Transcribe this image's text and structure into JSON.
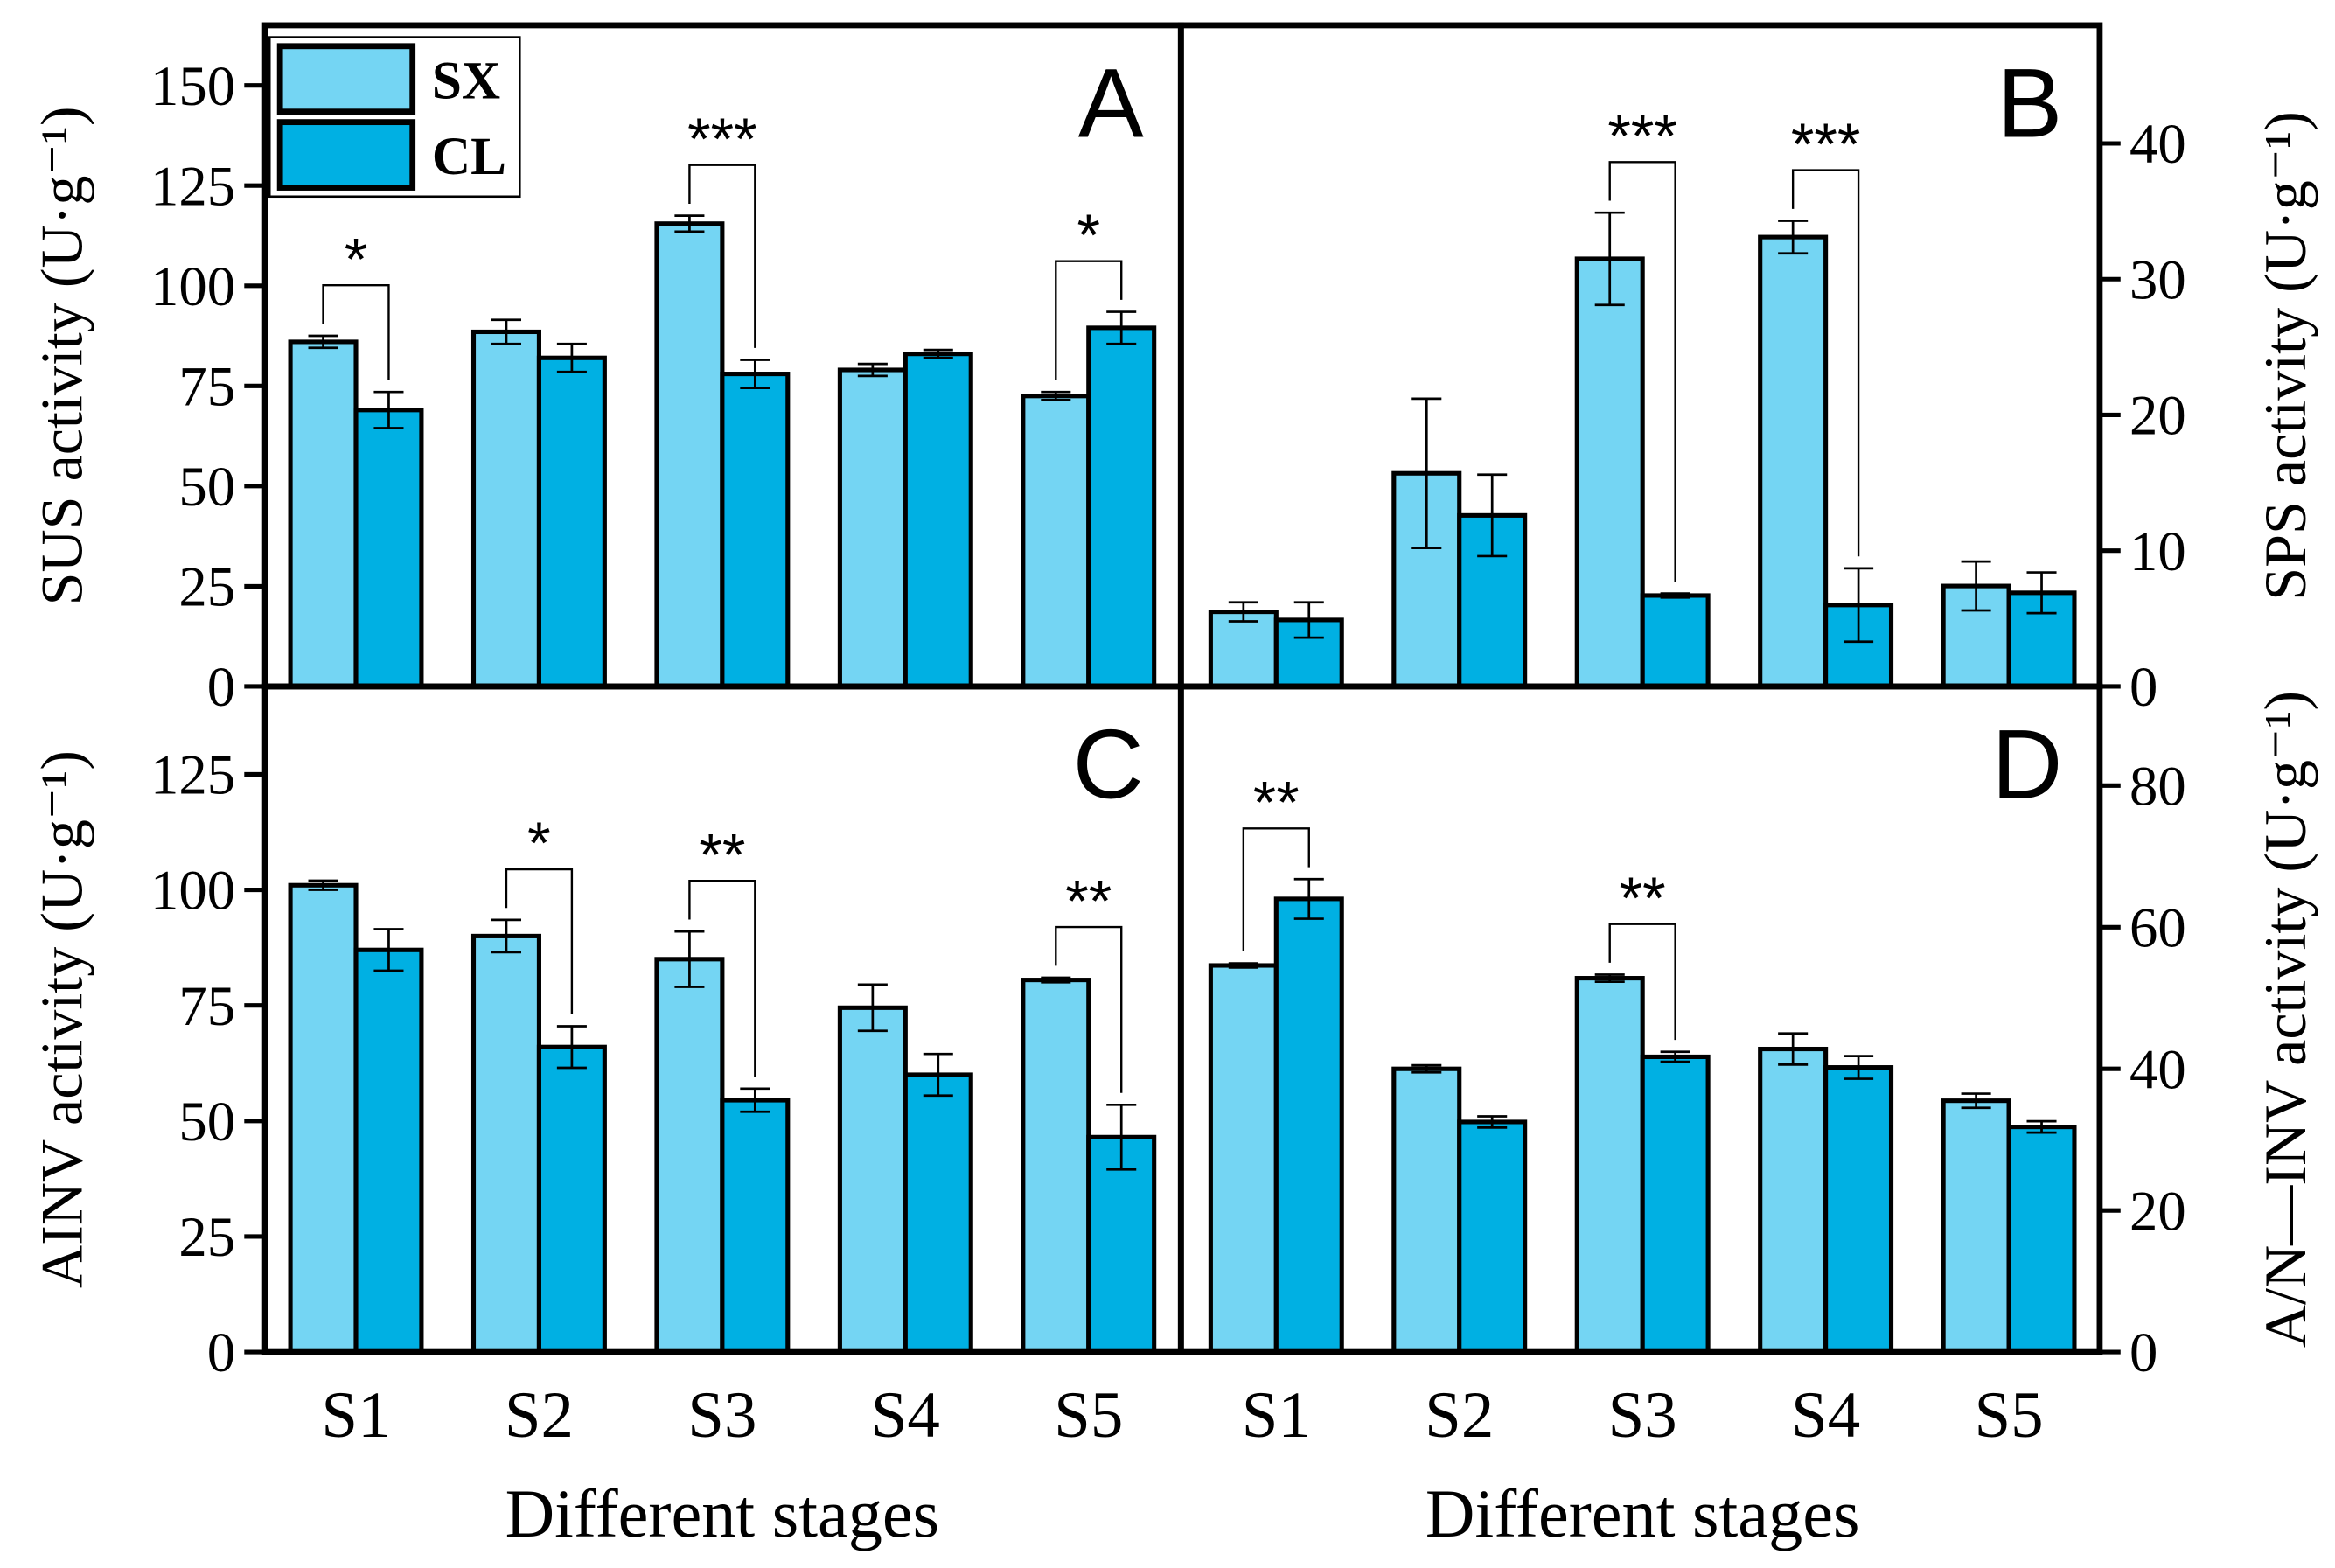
{
  "colors": {
    "SX": "#74D5F3",
    "CL": "#00B0E3"
  },
  "legend": {
    "placement": "top-left",
    "entries": [
      "SX",
      "CL"
    ]
  },
  "xlabel": "Different stages",
  "chart_data": [
    {
      "type": "bar",
      "panel": "A",
      "ylabel": "SUS activity (U·g⁻¹)",
      "axis_side": "left",
      "categories": [
        "S1",
        "S2",
        "S3",
        "S4",
        "S5"
      ],
      "ylim": [
        0,
        165
      ],
      "yticks": [
        0,
        25,
        50,
        75,
        100,
        125,
        150
      ],
      "series": [
        {
          "name": "SX",
          "values": [
            86,
            88.5,
            115.5,
            79,
            72.5
          ],
          "errors": [
            1.5,
            3,
            2,
            1.5,
            1
          ]
        },
        {
          "name": "CL",
          "values": [
            69,
            82,
            78,
            83,
            89.5
          ],
          "errors": [
            4.5,
            3.5,
            3.5,
            1,
            4
          ]
        }
      ],
      "significance": [
        {
          "category": "S1",
          "label": "*"
        },
        {
          "category": "S3",
          "label": "***"
        },
        {
          "category": "S5",
          "label": "*"
        }
      ]
    },
    {
      "type": "bar",
      "panel": "B",
      "ylabel": "SPS activity (U·g⁻¹)",
      "axis_side": "right",
      "categories": [
        "S1",
        "S2",
        "S3",
        "S4",
        "S5"
      ],
      "ylim": [
        0,
        48.7
      ],
      "yticks": [
        0,
        10,
        20,
        30,
        40
      ],
      "series": [
        {
          "name": "SX",
          "values": [
            5.5,
            15.7,
            31.5,
            33.1,
            7.4
          ],
          "errors": [
            0.7,
            5.5,
            3.4,
            1.2,
            1.8
          ]
        },
        {
          "name": "CL",
          "values": [
            4.9,
            12.6,
            6.7,
            6.0,
            6.9
          ],
          "errors": [
            1.3,
            3.0,
            0.15,
            2.7,
            1.5
          ]
        }
      ],
      "significance": [
        {
          "category": "S3",
          "label": "***"
        },
        {
          "category": "S4",
          "label": "***"
        }
      ]
    },
    {
      "type": "bar",
      "panel": "C",
      "ylabel": "AINV activity (U·g⁻¹)",
      "axis_side": "left",
      "categories": [
        "S1",
        "S2",
        "S3",
        "S4",
        "S5"
      ],
      "ylim": [
        0,
        144
      ],
      "yticks": [
        0,
        25,
        50,
        75,
        100,
        125
      ],
      "series": [
        {
          "name": "SX",
          "values": [
            101,
            90,
            85,
            74.5,
            80.5
          ],
          "errors": [
            1,
            3.5,
            6,
            5,
            0.5
          ]
        },
        {
          "name": "CL",
          "values": [
            87,
            66,
            54.5,
            60,
            46.5
          ],
          "errors": [
            4.5,
            4.5,
            2.5,
            4.5,
            7
          ]
        }
      ],
      "significance": [
        {
          "category": "S2",
          "label": "*"
        },
        {
          "category": "S3",
          "label": "**"
        },
        {
          "category": "S5",
          "label": "**"
        }
      ]
    },
    {
      "type": "bar",
      "panel": "D",
      "ylabel": "A/N—INV activity (U·g⁻¹)",
      "axis_side": "right",
      "categories": [
        "S1",
        "S2",
        "S3",
        "S4",
        "S5"
      ],
      "ylim": [
        0,
        94
      ],
      "yticks": [
        0,
        20,
        40,
        60,
        80
      ],
      "series": [
        {
          "name": "SX",
          "values": [
            54.6,
            40,
            52.8,
            42.8,
            35.5
          ],
          "errors": [
            0.3,
            0.5,
            0.5,
            2.2,
            1
          ]
        },
        {
          "name": "CL",
          "values": [
            64,
            32.5,
            41.7,
            40.2,
            31.8
          ],
          "errors": [
            2.8,
            0.8,
            0.7,
            1.6,
            0.8
          ]
        }
      ],
      "significance": [
        {
          "category": "S1",
          "label": "**"
        },
        {
          "category": "S3",
          "label": "**"
        }
      ]
    }
  ]
}
